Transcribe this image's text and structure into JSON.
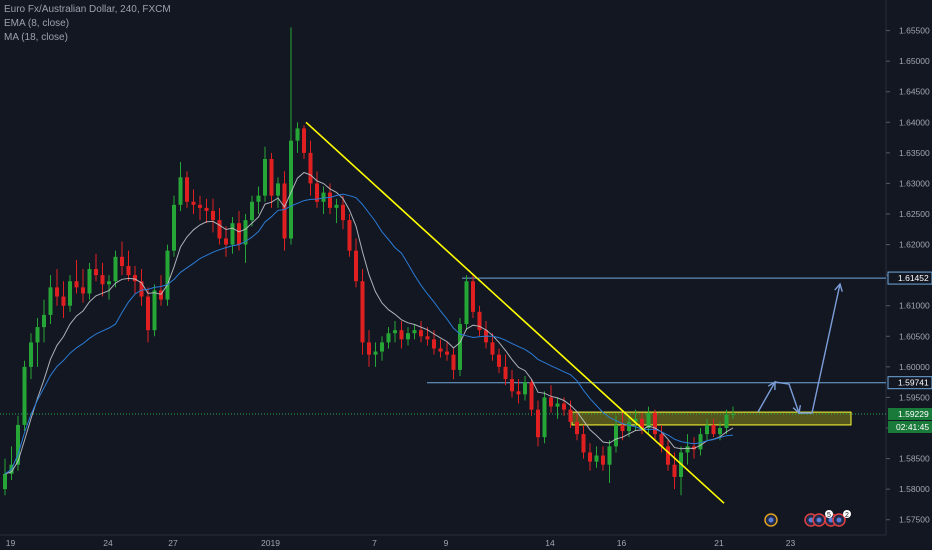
{
  "legend": {
    "symbol": "Euro Fx/Australian Dollar, 240, FXCM",
    "ema": "EMA (8, close)",
    "ma": "MA (18, close)"
  },
  "colors": {
    "background": "#131722",
    "up_candle": "#26a637",
    "down_candle": "#e02020",
    "ema_line": "#c9cbd1",
    "ma_line": "#2a7bd6",
    "trendline": "#ffff00",
    "level_line": "#6fa8dc",
    "zone_fill": "#8b8b1a",
    "zone_border": "#ffff33",
    "current_price": "#1a7a3a",
    "projection": "#7c9ed9"
  },
  "chart_data": {
    "type": "candlestick",
    "ylim": [
      1.5725,
      1.66
    ],
    "y_ticks": [
      "1.65500",
      "1.65000",
      "1.64500",
      "1.64000",
      "1.63500",
      "1.63000",
      "1.62500",
      "1.62000",
      "1.61500",
      "1.61000",
      "1.60500",
      "1.60000",
      "1.59500",
      "1.59000",
      "1.58500",
      "1.58000",
      "1.57500"
    ],
    "x_ticks": [
      "19",
      "24",
      "27",
      "2019",
      "7",
      "9",
      "14",
      "16",
      "21",
      "23"
    ],
    "levels": [
      {
        "label": "1.61452",
        "value": 1.61452
      },
      {
        "label": "1.59741",
        "value": 1.59741
      }
    ],
    "current_price": {
      "label": "1.59229",
      "value": 1.59229,
      "countdown": "02:41:45"
    },
    "zone": {
      "low": 1.5905,
      "high": 1.5926
    },
    "trendline": {
      "start_value": 1.64,
      "end_value": 1.5777
    },
    "candles": [
      [
        1.58,
        1.585,
        1.579,
        1.5825
      ],
      [
        1.5825,
        1.587,
        1.5815,
        1.584
      ],
      [
        1.584,
        1.592,
        1.583,
        1.5905
      ],
      [
        1.5905,
        1.601,
        1.5895,
        1.6
      ],
      [
        1.6,
        1.6055,
        1.598,
        1.604
      ],
      [
        1.604,
        1.608,
        1.6,
        1.6065
      ],
      [
        1.6065,
        1.611,
        1.604,
        1.6085
      ],
      [
        1.6085,
        1.615,
        1.607,
        1.613
      ],
      [
        1.613,
        1.616,
        1.61,
        1.6115
      ],
      [
        1.6115,
        1.614,
        1.608,
        1.61
      ],
      [
        1.61,
        1.615,
        1.609,
        1.614
      ],
      [
        1.614,
        1.6175,
        1.612,
        1.613
      ],
      [
        1.613,
        1.616,
        1.6105,
        1.612
      ],
      [
        1.612,
        1.617,
        1.611,
        1.616
      ],
      [
        1.616,
        1.6185,
        1.614,
        1.615
      ],
      [
        1.615,
        1.617,
        1.6115,
        1.6135
      ],
      [
        1.6135,
        1.615,
        1.611,
        1.614
      ],
      [
        1.614,
        1.619,
        1.613,
        1.618
      ],
      [
        1.618,
        1.6205,
        1.615,
        1.6165
      ],
      [
        1.6165,
        1.619,
        1.614,
        1.615
      ],
      [
        1.615,
        1.6165,
        1.612,
        1.614
      ],
      [
        1.614,
        1.616,
        1.61,
        1.6115
      ],
      [
        1.6115,
        1.613,
        1.604,
        1.606
      ],
      [
        1.606,
        1.6135,
        1.605,
        1.6125
      ],
      [
        1.6125,
        1.615,
        1.61,
        1.611
      ],
      [
        1.611,
        1.62,
        1.61,
        1.619
      ],
      [
        1.619,
        1.628,
        1.618,
        1.6265
      ],
      [
        1.6265,
        1.6335,
        1.6255,
        1.631
      ],
      [
        1.631,
        1.632,
        1.626,
        1.627
      ],
      [
        1.627,
        1.629,
        1.625,
        1.6265
      ],
      [
        1.6265,
        1.628,
        1.624,
        1.626
      ],
      [
        1.626,
        1.6275,
        1.6235,
        1.6255
      ],
      [
        1.6255,
        1.6275,
        1.622,
        1.624
      ],
      [
        1.624,
        1.626,
        1.62,
        1.621
      ],
      [
        1.621,
        1.623,
        1.618,
        1.62
      ],
      [
        1.62,
        1.6245,
        1.6185,
        1.6235
      ],
      [
        1.6235,
        1.6255,
        1.619,
        1.62
      ],
      [
        1.62,
        1.625,
        1.617,
        1.624
      ],
      [
        1.624,
        1.628,
        1.623,
        1.627
      ],
      [
        1.627,
        1.6295,
        1.625,
        1.628
      ],
      [
        1.628,
        1.636,
        1.627,
        1.634
      ],
      [
        1.634,
        1.635,
        1.626,
        1.628
      ],
      [
        1.628,
        1.631,
        1.626,
        1.63
      ],
      [
        1.63,
        1.632,
        1.619,
        1.621
      ],
      [
        1.621,
        1.6555,
        1.62,
        1.637
      ],
      [
        1.637,
        1.64,
        1.635,
        1.639
      ],
      [
        1.639,
        1.6395,
        1.634,
        1.635
      ],
      [
        1.635,
        1.637,
        1.628,
        1.63
      ],
      [
        1.63,
        1.632,
        1.626,
        1.627
      ],
      [
        1.627,
        1.6295,
        1.625,
        1.6285
      ],
      [
        1.6285,
        1.63,
        1.625,
        1.626
      ],
      [
        1.626,
        1.6275,
        1.6235,
        1.6265
      ],
      [
        1.6265,
        1.628,
        1.6225,
        1.624
      ],
      [
        1.624,
        1.625,
        1.618,
        1.619
      ],
      [
        1.619,
        1.621,
        1.613,
        1.614
      ],
      [
        1.614,
        1.616,
        1.602,
        1.604
      ],
      [
        1.604,
        1.606,
        1.6,
        1.602
      ],
      [
        1.602,
        1.604,
        1.6,
        1.6025
      ],
      [
        1.6025,
        1.605,
        1.601,
        1.604
      ],
      [
        1.604,
        1.6065,
        1.603,
        1.6055
      ],
      [
        1.6055,
        1.6075,
        1.604,
        1.606
      ],
      [
        1.606,
        1.6075,
        1.603,
        1.6045
      ],
      [
        1.6045,
        1.6065,
        1.6035,
        1.6055
      ],
      [
        1.6055,
        1.607,
        1.6045,
        1.606
      ],
      [
        1.606,
        1.6075,
        1.604,
        1.605
      ],
      [
        1.605,
        1.6065,
        1.6035,
        1.6045
      ],
      [
        1.6045,
        1.606,
        1.602,
        1.603
      ],
      [
        1.603,
        1.6045,
        1.6015,
        1.6025
      ],
      [
        1.6025,
        1.604,
        1.601,
        1.602
      ],
      [
        1.602,
        1.603,
        1.598,
        1.5995
      ],
      [
        1.5995,
        1.608,
        1.5985,
        1.607
      ],
      [
        1.607,
        1.615,
        1.606,
        1.614
      ],
      [
        1.614,
        1.615,
        1.608,
        1.609
      ],
      [
        1.609,
        1.61,
        1.605,
        1.606
      ],
      [
        1.606,
        1.6075,
        1.603,
        1.604
      ],
      [
        1.604,
        1.6055,
        1.601,
        1.602
      ],
      [
        1.602,
        1.603,
        1.599,
        1.6
      ],
      [
        1.6,
        1.602,
        1.597,
        1.598
      ],
      [
        1.598,
        1.5995,
        1.595,
        1.596
      ],
      [
        1.596,
        1.598,
        1.594,
        1.5955
      ],
      [
        1.5955,
        1.5985,
        1.5945,
        1.5975
      ],
      [
        1.5975,
        1.598,
        1.592,
        1.593
      ],
      [
        1.593,
        1.5945,
        1.587,
        1.5885
      ],
      [
        1.5885,
        1.596,
        1.5875,
        1.595
      ],
      [
        1.595,
        1.597,
        1.5925,
        1.5935
      ],
      [
        1.5935,
        1.595,
        1.5915,
        1.594
      ],
      [
        1.594,
        1.595,
        1.592,
        1.593
      ],
      [
        1.593,
        1.5945,
        1.59,
        1.591
      ],
      [
        1.591,
        1.5925,
        1.588,
        1.589
      ],
      [
        1.589,
        1.5905,
        1.585,
        1.586
      ],
      [
        1.586,
        1.5875,
        1.583,
        1.5845
      ],
      [
        1.5845,
        1.587,
        1.5835,
        1.5855
      ],
      [
        1.5855,
        1.587,
        1.583,
        1.584
      ],
      [
        1.584,
        1.588,
        1.581,
        1.587
      ],
      [
        1.587,
        1.592,
        1.586,
        1.5905
      ],
      [
        1.5905,
        1.5925,
        1.588,
        1.5895
      ],
      [
        1.5895,
        1.592,
        1.5885,
        1.591
      ],
      [
        1.591,
        1.593,
        1.5895,
        1.5915
      ],
      [
        1.5915,
        1.5925,
        1.589,
        1.59
      ],
      [
        1.59,
        1.5935,
        1.589,
        1.5925
      ],
      [
        1.5925,
        1.593,
        1.588,
        1.589
      ],
      [
        1.589,
        1.5905,
        1.586,
        1.587
      ],
      [
        1.587,
        1.588,
        1.583,
        1.584
      ],
      [
        1.584,
        1.586,
        1.58,
        1.582
      ],
      [
        1.582,
        1.587,
        1.579,
        1.586
      ],
      [
        1.586,
        1.589,
        1.584,
        1.587
      ],
      [
        1.587,
        1.5885,
        1.585,
        1.5865
      ],
      [
        1.5865,
        1.59,
        1.5855,
        1.589
      ],
      [
        1.589,
        1.5915,
        1.588,
        1.5905
      ],
      [
        1.5905,
        1.5915,
        1.5885,
        1.589
      ],
      [
        1.589,
        1.591,
        1.588,
        1.59
      ],
      [
        1.59,
        1.593,
        1.589,
        1.5922
      ],
      [
        1.5922,
        1.5935,
        1.5915,
        1.5923
      ]
    ]
  }
}
